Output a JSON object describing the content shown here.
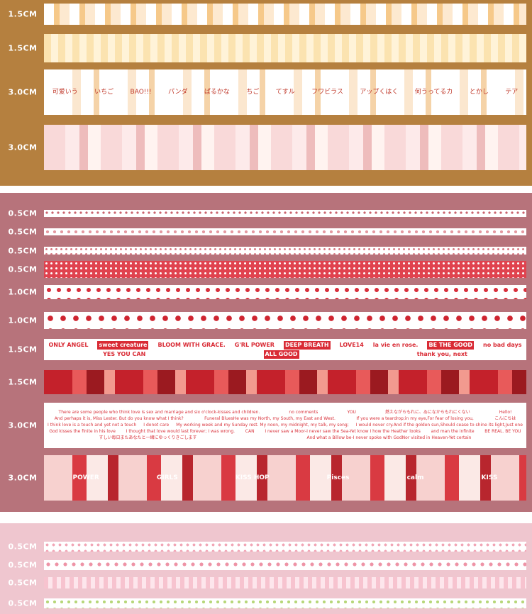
{
  "panels": [
    {
      "tapes": [
        {
          "width": "1.5CM"
        },
        {
          "width": "1.5CM"
        },
        {
          "width": "3.0CM",
          "texts": [
            "可爱いう",
            "いちご",
            "BAO!!!",
            "パンダ",
            "ぱるかな",
            "ちご",
            "てすル",
            "フワビラス",
            "アップくはく",
            "何うってるカ",
            "とかし",
            "テア"
          ]
        },
        {
          "width": "3.0CM"
        }
      ]
    },
    {
      "tapes": [
        {
          "width": "0.5CM"
        },
        {
          "width": "0.5CM"
        },
        {
          "width": "0.5CM"
        },
        {
          "width": "0.5CM"
        },
        {
          "width": "1.0CM"
        },
        {
          "width": "1.0CM"
        },
        {
          "width": "1.5CM",
          "texts": [
            "ONLY ANGEL",
            "sweet creature",
            "BLOOM WITH GRACE.",
            "G'RL POWER",
            "DEEP BREATH",
            "LOVE14",
            "la vie en rose.",
            "BE THE GOOD",
            "no bad days",
            "YES YOU CAN",
            "ALL GOOD",
            "thank you, next"
          ]
        },
        {
          "width": "1.5CM"
        },
        {
          "width": "3.0CM",
          "texts": [
            "There are some people who think love is sex and marriage and six o'clock-kisses and children.",
            "no comments",
            "YOU",
            "燃えながらもれに、ゐになからもれにくない",
            "Hello!",
            "And perhaps it is, Miss Lester. But do you know what I think?",
            "Funeral BluesHe was my North, my South, my East and West.",
            "If you were a teardrop;in my eye,For fear of losing you,",
            "こんにちは",
            "I think love is a touch and yet not a touch",
            "I donot care",
            "My working week and my Sunday rest. My noon, my midnight, my talk, my song;",
            "I would never cry.And if the golden sun,Should cease to shine its light,Just one",
            "God kisses the finite in his love",
            "I thought that love would last forever; I was wrong.",
            "CAN",
            "I never saw a Moor-I never saw the Sea-Yet know I how the Heather looks",
            "and man the infinite",
            "BE REAL. BE YOU",
            "すしい毎日またあなたと一緒にゆっくりきごします",
            "And what a Billow be-I never spoke with GodNor visited in Heaven-Yet certain"
          ]
        },
        {
          "width": "3.0CM",
          "texts": [
            "POWER",
            "GIRLS",
            "KISS HOP",
            "Pisces",
            "calm",
            "KISS"
          ]
        }
      ]
    },
    {
      "tapes": [
        {
          "width": "0.5CM"
        },
        {
          "width": "0.5CM"
        },
        {
          "width": "0.5CM"
        },
        {
          "width": "0.5CM"
        }
      ]
    }
  ]
}
